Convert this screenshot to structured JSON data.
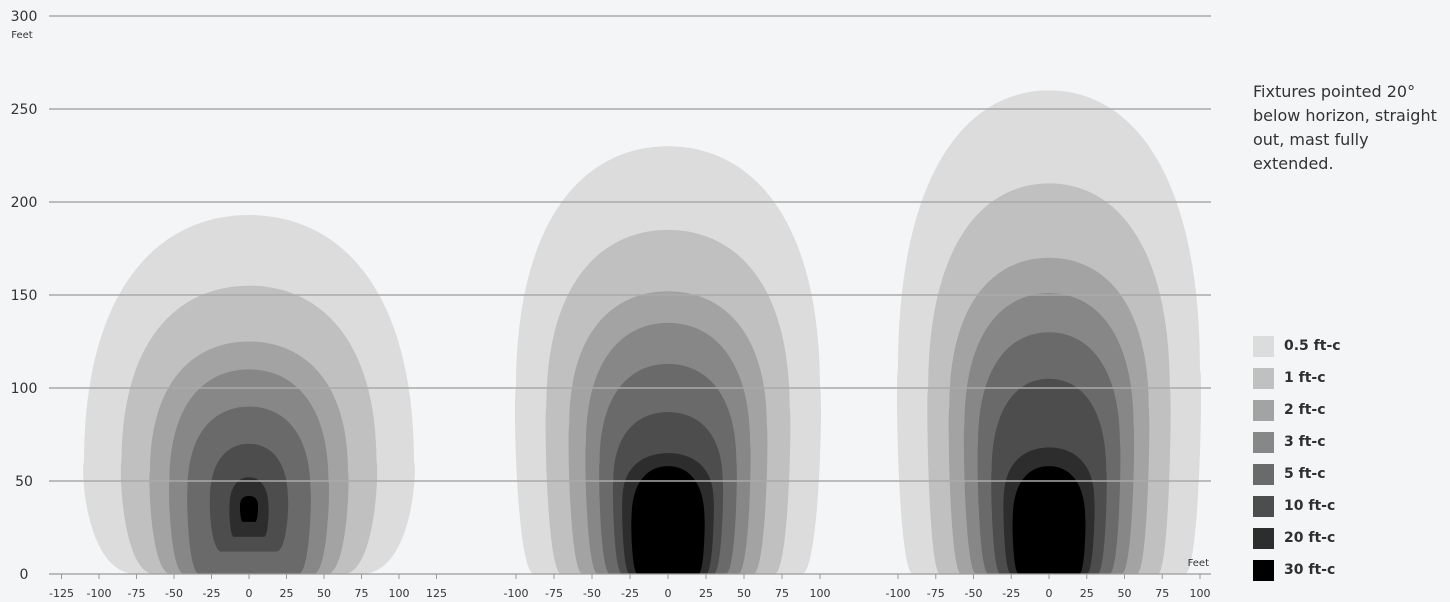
{
  "chart_data": {
    "type": "area",
    "title": "",
    "xlabel": "Feet",
    "ylabel": "Feet",
    "ylim": [
      0,
      300
    ],
    "y_ticks": [
      "0",
      "50",
      "100",
      "150",
      "200",
      "250",
      "300"
    ],
    "grid": true,
    "note": "Fixtures pointed 20° below horizon, straight out, mast fully extended.",
    "legend": [
      {
        "label": "0.5 ft-c",
        "color": "#dcdcdc"
      },
      {
        "label": "1 ft-c",
        "color": "#c0c0c0"
      },
      {
        "label": "2 ft-c",
        "color": "#a3a3a3"
      },
      {
        "label": "3 ft-c",
        "color": "#878787"
      },
      {
        "label": "5 ft-c",
        "color": "#6a6a6a"
      },
      {
        "label": "10 ft-c",
        "color": "#4d4d4d"
      },
      {
        "label": "20 ft-c",
        "color": "#2d2d2d"
      },
      {
        "label": "30 ft-c",
        "color": "#000000"
      }
    ],
    "panels": [
      {
        "x_ticks": [
          "-125",
          "-100",
          "-75",
          "-50",
          "-25",
          "0",
          "25",
          "50",
          "75",
          "100",
          "125"
        ],
        "contours": [
          {
            "level": "0.5 ft-c",
            "half_width": 110,
            "y_top": 193,
            "y_base": 0,
            "y_wide": 60,
            "base_width": 75
          },
          {
            "level": "1 ft-c",
            "half_width": 85,
            "y_top": 155,
            "y_base": 0,
            "y_wide": 60,
            "base_width": 63
          },
          {
            "level": "2 ft-c",
            "half_width": 66,
            "y_top": 125,
            "y_base": 0,
            "y_wide": 55,
            "base_width": 52
          },
          {
            "level": "3 ft-c",
            "half_width": 53,
            "y_top": 110,
            "y_base": 0,
            "y_wide": 50,
            "base_width": 43
          },
          {
            "level": "5 ft-c",
            "half_width": 41,
            "y_top": 90,
            "y_base": 0,
            "y_wide": 45,
            "base_width": 33
          },
          {
            "level": "10 ft-c",
            "half_width": 26,
            "y_top": 70,
            "y_base": 12,
            "y_wide": 40,
            "base_width": 18
          },
          {
            "level": "20 ft-c",
            "half_width": 13,
            "y_top": 52,
            "y_base": 20,
            "y_wide": 36,
            "base_width": 10
          },
          {
            "level": "30 ft-c",
            "half_width": 6,
            "y_top": 42,
            "y_base": 28,
            "y_wide": 37,
            "base_width": 4
          }
        ]
      },
      {
        "x_ticks": [
          "-100",
          "-75",
          "-50",
          "-25",
          "0",
          "25",
          "50",
          "75",
          "100"
        ],
        "contours": [
          {
            "level": "0.5 ft-c",
            "half_width": 100,
            "y_top": 230,
            "y_base": 0,
            "y_wide": 100,
            "base_width": 88
          },
          {
            "level": "1 ft-c",
            "half_width": 80,
            "y_top": 185,
            "y_base": 0,
            "y_wide": 90,
            "base_width": 70
          },
          {
            "level": "2 ft-c",
            "half_width": 65,
            "y_top": 152,
            "y_base": 0,
            "y_wide": 80,
            "base_width": 56
          },
          {
            "level": "3 ft-c",
            "half_width": 54,
            "y_top": 135,
            "y_base": 0,
            "y_wide": 70,
            "base_width": 46
          },
          {
            "level": "5 ft-c",
            "half_width": 45,
            "y_top": 113,
            "y_base": 0,
            "y_wide": 60,
            "base_width": 38
          },
          {
            "level": "10 ft-c",
            "half_width": 36,
            "y_top": 87,
            "y_base": 0,
            "y_wide": 50,
            "base_width": 30
          },
          {
            "level": "20 ft-c",
            "half_width": 30,
            "y_top": 65,
            "y_base": 0,
            "y_wide": 40,
            "base_width": 25
          },
          {
            "level": "30 ft-c",
            "half_width": 24,
            "y_top": 58,
            "y_base": 0,
            "y_wide": 30,
            "base_width": 20
          }
        ]
      },
      {
        "x_ticks": [
          "-100",
          "-75",
          "-50",
          "-25",
          "0",
          "25",
          "50",
          "75",
          "100"
        ],
        "contours": [
          {
            "level": "0.5 ft-c",
            "half_width": 100,
            "y_top": 260,
            "y_base": 0,
            "y_wide": 110,
            "base_width": 90
          },
          {
            "level": "1 ft-c",
            "half_width": 80,
            "y_top": 210,
            "y_base": 0,
            "y_wide": 100,
            "base_width": 72
          },
          {
            "level": "2 ft-c",
            "half_width": 66,
            "y_top": 170,
            "y_base": 0,
            "y_wide": 90,
            "base_width": 58
          },
          {
            "level": "3 ft-c",
            "half_width": 56,
            "y_top": 151,
            "y_base": 0,
            "y_wide": 80,
            "base_width": 48
          },
          {
            "level": "5 ft-c",
            "half_width": 47,
            "y_top": 130,
            "y_base": 0,
            "y_wide": 70,
            "base_width": 40
          },
          {
            "level": "10 ft-c",
            "half_width": 38,
            "y_top": 105,
            "y_base": 0,
            "y_wide": 55,
            "base_width": 32
          },
          {
            "level": "20 ft-c",
            "half_width": 30,
            "y_top": 68,
            "y_base": 0,
            "y_wide": 40,
            "base_width": 25
          },
          {
            "level": "30 ft-c",
            "half_width": 24,
            "y_top": 58,
            "y_base": 0,
            "y_wide": 30,
            "base_width": 20
          }
        ]
      }
    ]
  }
}
